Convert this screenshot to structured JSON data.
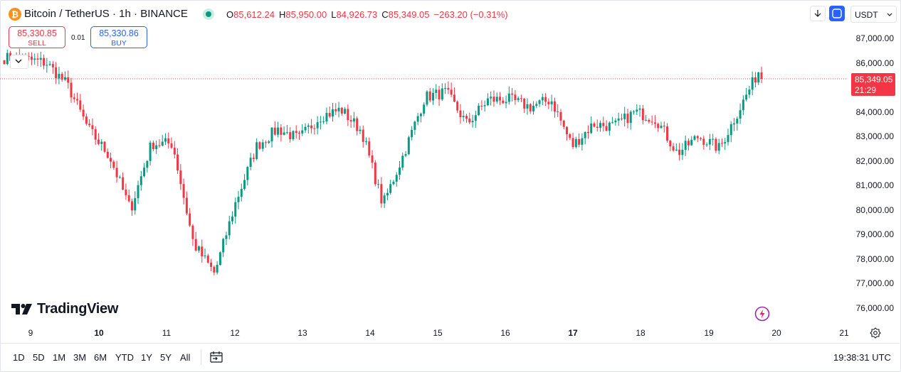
{
  "header": {
    "base": "Bitcoin",
    "sep": "/",
    "quote": "TetherUS",
    "interval": "1h",
    "exchange": "BINANCE",
    "ohlc": {
      "o_key": "O",
      "o": "85,612.24",
      "h_key": "H",
      "h": "85,950.00",
      "l_key": "L",
      "l": "84,926.73",
      "c_key": "C",
      "c": "85,349.05",
      "change": "−263.20 (−0.31%)"
    }
  },
  "trade": {
    "sell_price": "85,330.85",
    "sell_label": "SELL",
    "spread": "0.01",
    "buy_price": "85,330.86",
    "buy_label": "BUY"
  },
  "currency": {
    "selected": "USDT"
  },
  "price_axis": {
    "labels": [
      "87,000.00",
      "86,000.00",
      "84,000.00",
      "83,000.00",
      "82,000.00",
      "81,000.00",
      "80,000.00",
      "79,000.00",
      "78,000.00",
      "77,000.00",
      "76,000.00"
    ],
    "current_price": "85,349.05",
    "countdown": "21:29"
  },
  "time_axis": {
    "labels": [
      "9",
      "10",
      "11",
      "12",
      "13",
      "14",
      "15",
      "16",
      "17",
      "18",
      "19",
      "20",
      "21"
    ],
    "bold_labels": [
      "10",
      "17"
    ]
  },
  "watermark": "TradingView",
  "toolbar": {
    "periods": [
      "1D",
      "5D",
      "1M",
      "3M",
      "6M",
      "YTD",
      "1Y",
      "5Y",
      "All"
    ],
    "clock": "19:38:31 UTC"
  },
  "colors": {
    "up": "#089981",
    "down": "#f23645",
    "accent": "#2962ff"
  },
  "icons": [
    "bitcoin-icon",
    "chevron-down-icon",
    "arrow-down-icon",
    "fit-icon",
    "settings-icon",
    "date-range-icon",
    "flash-icon",
    "tradingview-logo-icon"
  ],
  "chart_data": {
    "type": "candlestick",
    "symbol": "BTCUSDT",
    "interval": "1h",
    "ylim": [
      75800,
      87400
    ],
    "y_ticks": [
      87000,
      86000,
      84000,
      83000,
      82000,
      81000,
      80000,
      79000,
      78000,
      77000,
      76000
    ],
    "x_ticks": [
      "9",
      "10",
      "11",
      "12",
      "13",
      "14",
      "15",
      "16",
      "17",
      "18",
      "19",
      "20",
      "21"
    ],
    "last_price": 85349.05,
    "path_close": [
      86200,
      86150,
      86000,
      85100,
      83300,
      82200,
      80000,
      82700,
      82700,
      78600,
      77400,
      80300,
      82600,
      83300,
      82900,
      83800,
      84100,
      83200,
      80200,
      82300,
      84600,
      84800,
      83500,
      84500,
      84500,
      84200,
      84500,
      82600,
      83500,
      83400,
      84000,
      83700,
      82300,
      83000,
      82500,
      84200,
      85900
    ]
  }
}
